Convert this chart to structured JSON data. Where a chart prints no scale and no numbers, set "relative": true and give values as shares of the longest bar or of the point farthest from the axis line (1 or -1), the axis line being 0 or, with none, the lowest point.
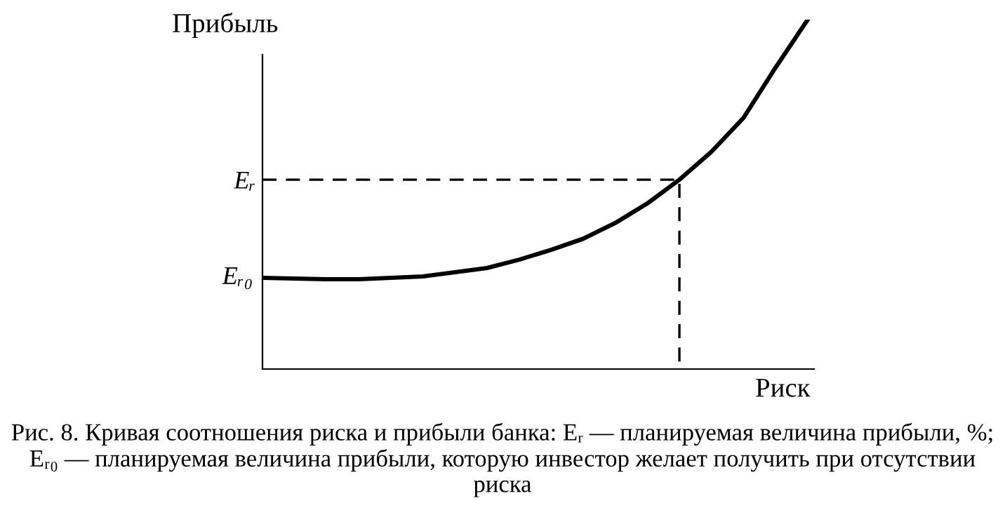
{
  "chart_data": {
    "type": "line",
    "relative": true,
    "xlabel": "Риск",
    "ylabel": "Прибыль",
    "categories": [
      null,
      null,
      null,
      null,
      null,
      null,
      null,
      null,
      null,
      null,
      null,
      null,
      null,
      null,
      null,
      null,
      null,
      null
    ],
    "series": [
      {
        "color": "#000000",
        "values": [
          0.261,
          0.259,
          0.257,
          0.257,
          0.261,
          0.265,
          0.277,
          0.289,
          0.313,
          0.341,
          0.373,
          0.418,
          0.474,
          0.542,
          0.622,
          0.719,
          0.863,
          1
        ]
      }
    ],
    "ref_lines": [
      {
        "axis": "y",
        "value": 0.542,
        "label": "Eᵣ",
        "line_style": "dashed",
        "color": "#000000"
      }
    ],
    "annotations": [
      "Eᵣ₀",
      "Рис. 8. Кривая соотношения риска и прибыли банка: Eᵣ — планируемая величина прибыли, %; Eᵣ₀ — планируемая величина прибыли, которую инвестор желает получить при отсутствии риска"
    ],
    "grid": false,
    "legend": false,
    "marker": "none",
    "line_style": "solid"
  }
}
